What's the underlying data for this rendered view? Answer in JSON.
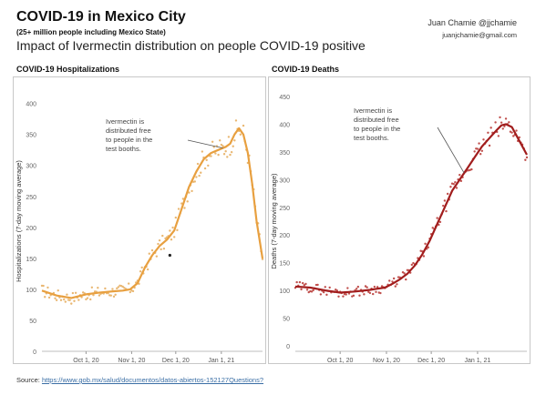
{
  "header": {
    "title": "COVID-19 in Mexico City",
    "subtitle": "(25+ million people including Mexico State)",
    "impact": "Impact of Ivermectin distribution on people COVID-19 positive",
    "author": "Juan Chamie @jjchamie",
    "email": "juanjchamie@gmail.com"
  },
  "source": {
    "label": "Source:",
    "url": "https://www.gob.mx/salud/documentos/datos-abiertos-152127",
    "question": "Questions?"
  },
  "colors": {
    "hosp": "#e8a040",
    "hosp_dots": "#e9b772",
    "deaths": "#a11d1d",
    "deaths_dots": "#c0504d",
    "outlier_dot": "#222222"
  },
  "chart_data": [
    {
      "type": "line",
      "title": "COVID-19 Hospitalizations",
      "xlabel": "",
      "ylabel": "Hospitalizations (7-day moving average)",
      "ylim": [
        0,
        420
      ],
      "yticks": [
        0,
        50,
        100,
        150,
        200,
        250,
        300,
        350,
        400
      ],
      "xticks": [
        {
          "label": "Oct 1, 20",
          "day": 30
        },
        {
          "label": "Nov 1, 20",
          "day": 61
        },
        {
          "label": "Dec 1, 20",
          "day": 91
        },
        {
          "label": "Jan 1, 21",
          "day": 122
        }
      ],
      "xlim": [
        0,
        150
      ],
      "grid": false,
      "annotation": "Ivermectin is distributed free to people in the test booths.",
      "series": [
        {
          "x": [
            0,
            10,
            20,
            30,
            40,
            50,
            55,
            60,
            65,
            70,
            75,
            80,
            85,
            90,
            95,
            100,
            105,
            110,
            115,
            120,
            125,
            128,
            131,
            134,
            137,
            140,
            143,
            146,
            150
          ],
          "values": [
            98,
            90,
            86,
            92,
            95,
            97,
            98,
            100,
            110,
            135,
            155,
            170,
            180,
            195,
            230,
            265,
            290,
            310,
            320,
            325,
            330,
            335,
            350,
            360,
            350,
            320,
            270,
            210,
            150
          ]
        }
      ],
      "outliers": [
        {
          "x": 87,
          "y": 155
        }
      ]
    },
    {
      "type": "line",
      "title": "COVID-19 Deaths",
      "xlabel": "",
      "ylabel": "Deaths (7-day moving average)",
      "ylim": [
        -10,
        460
      ],
      "yticks": [
        0,
        50,
        100,
        150,
        200,
        250,
        300,
        350,
        400,
        450
      ],
      "xticks": [
        {
          "label": "Oct 1, 20",
          "day": 30
        },
        {
          "label": "Nov 1, 20",
          "day": 61
        },
        {
          "label": "Dec 1, 20",
          "day": 91
        },
        {
          "label": "Jan 1, 21",
          "day": 122
        }
      ],
      "xlim": [
        0,
        155
      ],
      "grid": false,
      "annotation": "Ivermectin is distributed free to people in the test booths.",
      "series": [
        {
          "x": [
            0,
            10,
            20,
            30,
            40,
            50,
            55,
            60,
            65,
            70,
            75,
            80,
            85,
            90,
            95,
            100,
            105,
            110,
            115,
            120,
            125,
            130,
            135,
            138,
            141,
            145,
            150,
            155
          ],
          "values": [
            107,
            105,
            100,
            96,
            98,
            101,
            103,
            105,
            112,
            120,
            130,
            145,
            165,
            190,
            220,
            250,
            280,
            300,
            320,
            340,
            360,
            375,
            390,
            398,
            400,
            395,
            370,
            345
          ]
        }
      ]
    }
  ]
}
